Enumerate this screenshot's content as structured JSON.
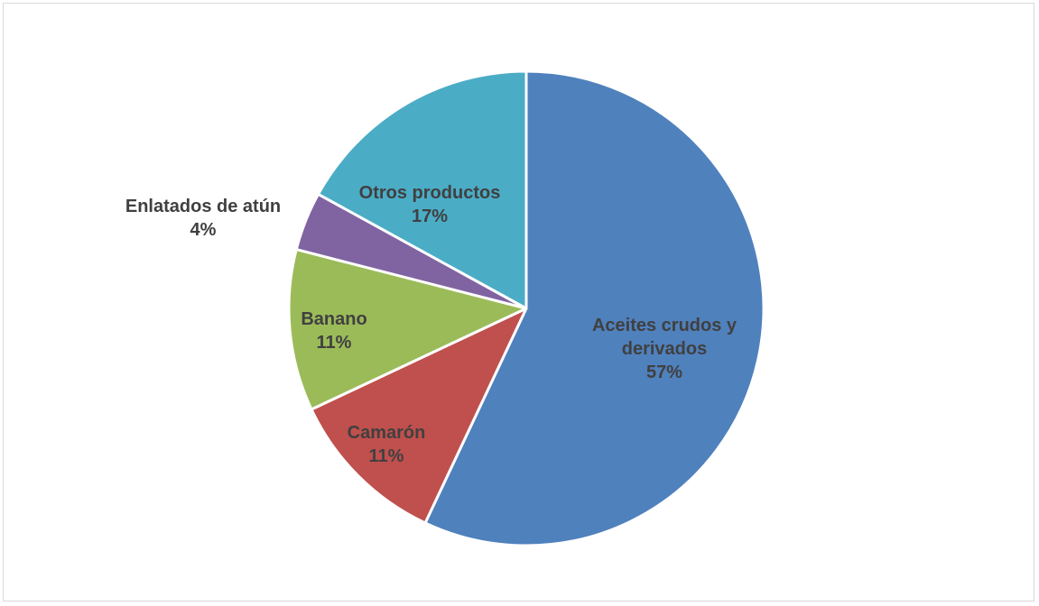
{
  "chart_data": {
    "type": "pie",
    "title": "",
    "start_angle_deg": 0,
    "direction": "clockwise",
    "legend": "none",
    "slices": [
      {
        "label": "Aceites crudos y derivados",
        "label_lines": [
          "Aceites crudos y",
          "derivados"
        ],
        "value": 57,
        "display": "57%",
        "color": "#4F81BD"
      },
      {
        "label": "Camarón",
        "label_lines": [
          "Camarón"
        ],
        "value": 11,
        "display": "11%",
        "color": "#C0504D"
      },
      {
        "label": "Banano",
        "label_lines": [
          "Banano"
        ],
        "value": 11,
        "display": "11%",
        "color": "#9BBB59"
      },
      {
        "label": "Enlatados de atún",
        "label_lines": [
          "Enlatados de atún"
        ],
        "value": 4,
        "display": "4%",
        "color": "#8064A2"
      },
      {
        "label": "Otros productos",
        "label_lines": [
          "Otros productos"
        ],
        "value": 17,
        "display": "17%",
        "color": "#4BACC6"
      }
    ]
  }
}
